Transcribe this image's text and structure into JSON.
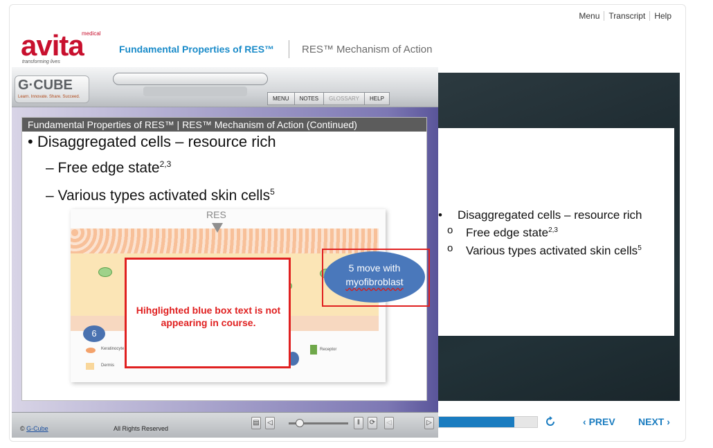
{
  "top_nav": {
    "menu": "Menu",
    "transcript": "Transcript",
    "help": "Help"
  },
  "logo": {
    "word": "avita",
    "sup": "medical",
    "tagline": "transforming lives"
  },
  "header": {
    "title": "Fundamental Properties of RES™",
    "subtitle": "RES™ Mechanism of Action"
  },
  "content": {
    "bullet1": "Disaggregated cells – resource rich",
    "sub1": "Free edge state",
    "sub1_sup": "2,3",
    "sub2": "Various types activated skin cells",
    "sub2_sup": "5"
  },
  "navigation": {
    "progress_fraction": 0.77,
    "prev": "PREV",
    "next": "NEXT"
  },
  "course_window": {
    "brand": "G·CUBE",
    "brand_tagline": "Learn. Innovate. Share. Succeed.",
    "menu": [
      "MENU",
      "NOTES",
      "GLOSSARY",
      "HELP"
    ],
    "slide_title": "Fundamental Properties of RES™ | RES™ Mechanism of Action (Continued)",
    "bullet1": "Disaggregated cells – resource rich",
    "sub1": "Free edge state",
    "sub1_sup": "2,3",
    "sub2": "Various types activated skin cells",
    "sub2_sup": "5",
    "diagram": {
      "res_label": "RES",
      "number_badge": "6",
      "legend_keratinocyte": "Keratinocyte",
      "legend_dermis": "Dermis",
      "legend_receptor": "Receptor"
    },
    "callout_text": "Hihglighted blue box text is not appearing in course.",
    "ellipse_line1": "5 move with",
    "ellipse_line2": "myofibroblast",
    "footer_copyright_symbol": "©",
    "footer_link": "G-Cube",
    "footer_rights": "All Rights Reserved"
  },
  "colors": {
    "brand_red": "#c8102e",
    "accent_blue": "#1a7cc0",
    "title_blue": "#1a8bc9",
    "callout_red": "#e02020"
  }
}
